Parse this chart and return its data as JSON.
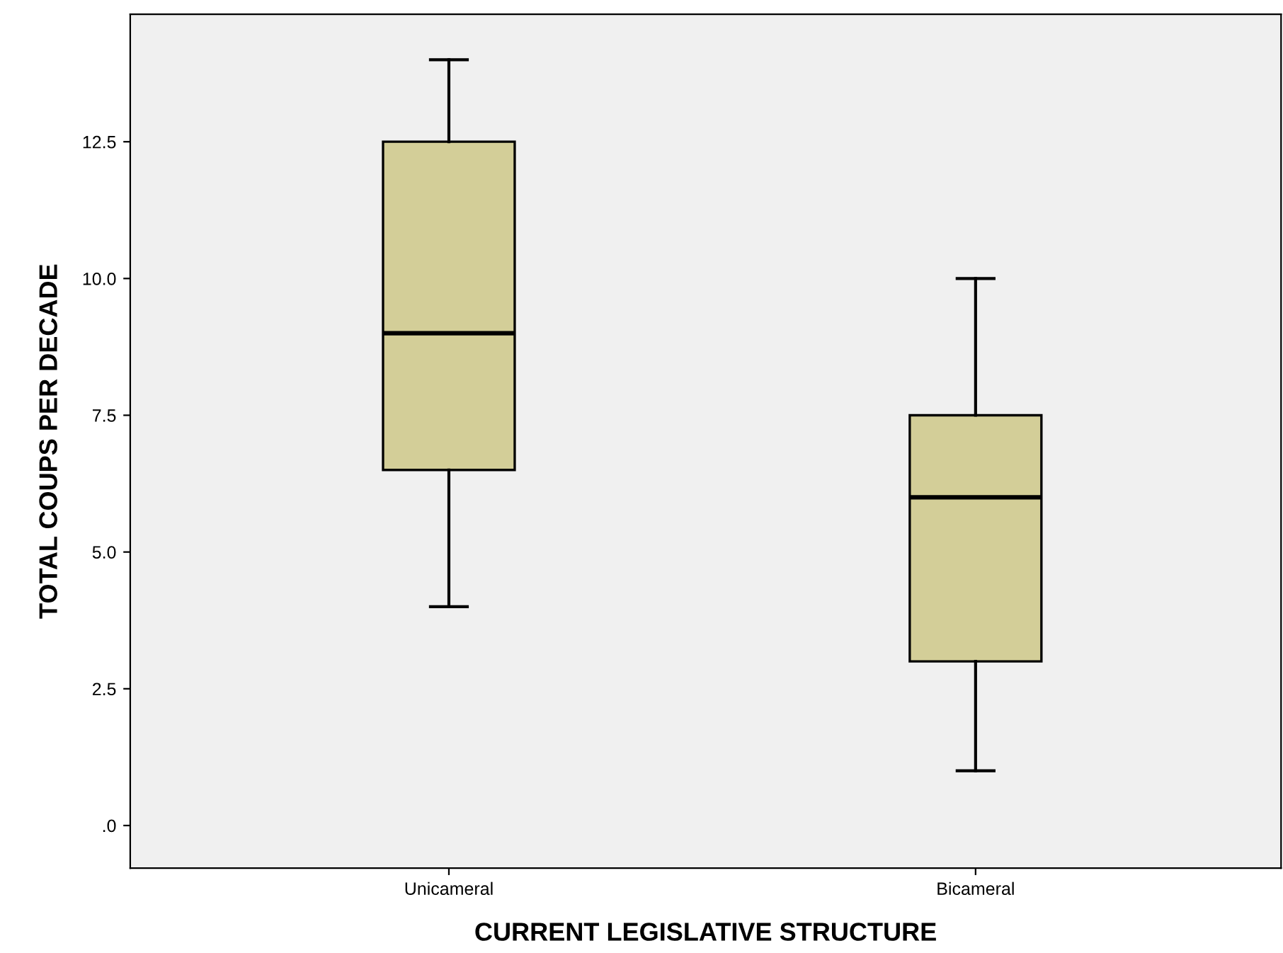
{
  "chart_data": {
    "type": "box",
    "xlabel": "CURRENT LEGISLATIVE STRUCTURE",
    "ylabel": "TOTAL COUPS PER DECADE",
    "categories": [
      "Unicameral",
      "Bicameral"
    ],
    "boxes": [
      {
        "low": 4,
        "q1": 6.5,
        "median": 9,
        "q3": 12.5,
        "high": 14
      },
      {
        "low": 1,
        "q1": 3,
        "median": 6,
        "q3": 7.5,
        "high": 10
      }
    ],
    "color": "#d3ce98",
    "ylim": [
      -0.78,
      14.83
    ],
    "yticks": [
      {
        "value": 0,
        "label": ".0"
      },
      {
        "value": 2.5,
        "label": "2.5"
      },
      {
        "value": 5,
        "label": "5.0"
      },
      {
        "value": 7.5,
        "label": "7.5"
      },
      {
        "value": 10,
        "label": "10.0"
      },
      {
        "value": 12.5,
        "label": "12.5"
      }
    ],
    "grid": false
  }
}
